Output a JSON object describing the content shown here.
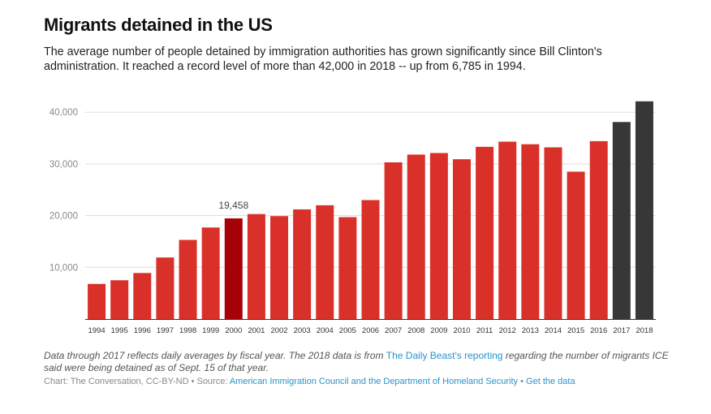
{
  "chart_data": {
    "type": "bar",
    "title": "Migrants detained in the US",
    "subtitle": "The average number of people detained by immigration authorities has grown significantly since Bill Clinton's administration. It reached a record level of more than 42,000 in 2018 -- up from 6,785 in 1994.",
    "categories": [
      "1994",
      "1995",
      "1996",
      "1997",
      "1998",
      "1999",
      "2000",
      "2001",
      "2002",
      "2003",
      "2004",
      "2005",
      "2006",
      "2007",
      "2008",
      "2009",
      "2010",
      "2011",
      "2012",
      "2013",
      "2014",
      "2015",
      "2016",
      "2017",
      "2018"
    ],
    "values": [
      6785,
      7500,
      8900,
      11900,
      15300,
      17700,
      19458,
      20300,
      19900,
      21200,
      22000,
      19700,
      23000,
      30300,
      31800,
      32100,
      30900,
      33300,
      34300,
      33800,
      33200,
      28500,
      34400,
      38100,
      42100
    ],
    "ylim": [
      0,
      42000
    ],
    "yticks": [
      "10,000",
      "20,000",
      "30,000",
      "40,000"
    ],
    "ytick_values": [
      10000,
      20000,
      30000,
      40000
    ],
    "grid": true,
    "annotations": [
      {
        "category": "2000",
        "label": "19,458"
      }
    ],
    "colors": {
      "default": "#d93129",
      "highlight": "#a60008",
      "alternate": "#373737",
      "highlight_categories": [
        "2000"
      ],
      "alternate_categories": [
        "2017",
        "2018"
      ]
    }
  },
  "footnote": {
    "pre": "Data through 2017 reflects daily averages by fiscal year. The 2018 data is from ",
    "link": "The Daily Beast's reporting",
    "post": " regarding the number of migrants ICE said were being detained as of Sept. 15 of that year."
  },
  "credit": {
    "pre": "Chart: The Conversation, CC-BY-ND • Source: ",
    "source_link": "American Immigration Council and the Department of Homeland Security",
    "sep": " • ",
    "data_link": "Get the data"
  }
}
